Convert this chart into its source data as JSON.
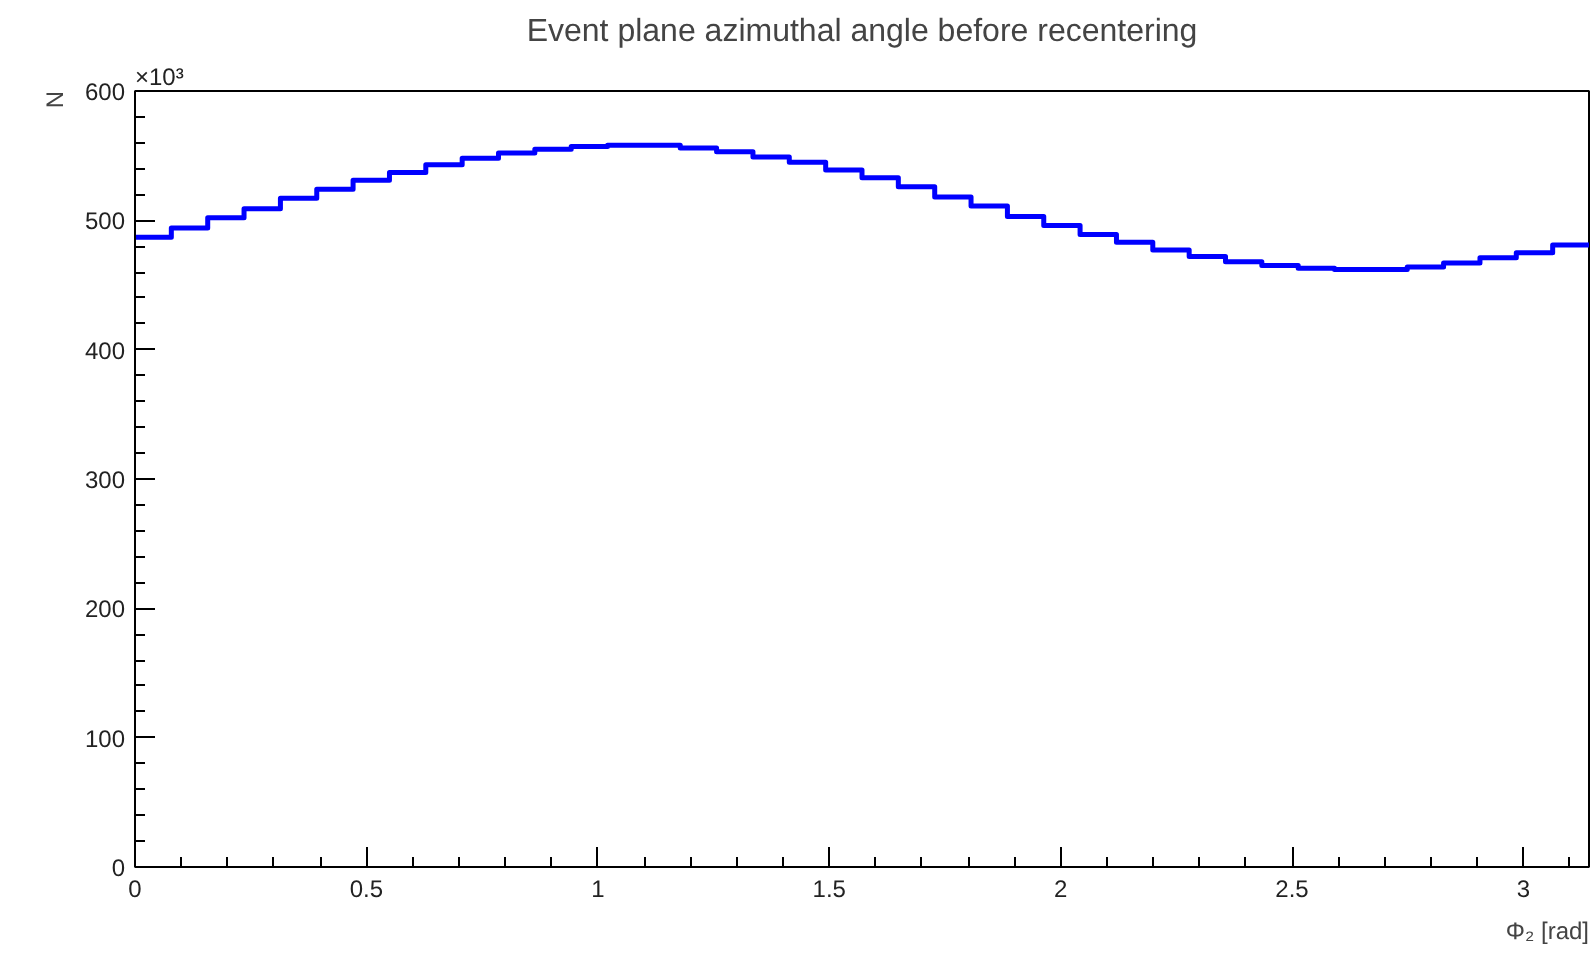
{
  "chart_data": {
    "type": "histogram",
    "title": "Event plane azimuthal angle before recentering",
    "xlabel": "Φ₂ [rad]",
    "ylabel": "N",
    "annotations": [
      "×10³"
    ],
    "color": "#0000ff",
    "bins": [
      0,
      0.0785,
      0.1571,
      0.2356,
      0.3142,
      0.3927,
      0.4712,
      0.5498,
      0.6283,
      0.7069,
      0.7854,
      0.8639,
      0.9425,
      1.021,
      1.0996,
      1.1781,
      1.2566,
      1.3352,
      1.4137,
      1.4923,
      1.5708,
      1.6493,
      1.7279,
      1.8064,
      1.885,
      1.9635,
      2.042,
      2.1206,
      2.1991,
      2.2777,
      2.3562,
      2.4347,
      2.5133,
      2.5918,
      2.6704,
      2.7489,
      2.8274,
      2.906,
      2.9845,
      3.0631,
      3.1416
    ],
    "values": [
      487,
      494,
      502,
      509,
      517,
      524,
      531,
      537,
      543,
      548,
      552,
      555,
      557,
      558,
      558,
      556,
      553,
      549,
      545,
      539,
      533,
      526,
      518,
      511,
      503,
      496,
      489,
      483,
      477,
      472,
      468,
      465,
      463,
      462,
      462,
      464,
      467,
      471,
      475,
      481
    ],
    "xlim": [
      0,
      3.1416
    ],
    "ylim": [
      0,
      600
    ],
    "xticks": [
      0,
      0.5,
      1,
      1.5,
      2,
      2.5,
      3,
      {
        "value": 0.1,
        "label": null
      },
      {
        "value": 0.2,
        "label": null
      },
      {
        "value": 0.3,
        "label": null
      },
      {
        "value": 0.4,
        "label": null
      },
      {
        "value": 0.6,
        "label": null
      },
      {
        "value": 0.7,
        "label": null
      },
      {
        "value": 0.8,
        "label": null
      },
      {
        "value": 0.9,
        "label": null
      },
      {
        "value": 1.1,
        "label": null
      },
      {
        "value": 1.2,
        "label": null
      },
      {
        "value": 1.3,
        "label": null
      },
      {
        "value": 1.4,
        "label": null
      },
      {
        "value": 1.6,
        "label": null
      },
      {
        "value": 1.7,
        "label": null
      },
      {
        "value": 1.8,
        "label": null
      },
      {
        "value": 1.9,
        "label": null
      },
      {
        "value": 2.1,
        "label": null
      },
      {
        "value": 2.2,
        "label": null
      },
      {
        "value": 2.3,
        "label": null
      },
      {
        "value": 2.4,
        "label": null
      },
      {
        "value": 2.6,
        "label": null
      },
      {
        "value": 2.7,
        "label": null
      },
      {
        "value": 2.8,
        "label": null
      },
      {
        "value": 2.9,
        "label": null
      },
      {
        "value": 3.1,
        "label": null
      }
    ],
    "yticks": [
      0,
      100,
      200,
      300,
      400,
      500,
      600,
      {
        "value": 20,
        "label": null
      },
      {
        "value": 40,
        "label": null
      },
      {
        "value": 60,
        "label": null
      },
      {
        "value": 80,
        "label": null
      },
      {
        "value": 120,
        "label": null
      },
      {
        "value": 140,
        "label": null
      },
      {
        "value": 160,
        "label": null
      },
      {
        "value": 180,
        "label": null
      },
      {
        "value": 220,
        "label": null
      },
      {
        "value": 240,
        "label": null
      },
      {
        "value": 260,
        "label": null
      },
      {
        "value": 280,
        "label": null
      },
      {
        "value": 320,
        "label": null
      },
      {
        "value": 340,
        "label": null
      },
      {
        "value": 360,
        "label": null
      },
      {
        "value": 380,
        "label": null
      },
      {
        "value": 420,
        "label": null
      },
      {
        "value": 440,
        "label": null
      },
      {
        "value": 460,
        "label": null
      },
      {
        "value": 480,
        "label": null
      },
      {
        "value": 520,
        "label": null
      },
      {
        "value": 540,
        "label": null
      },
      {
        "value": 560,
        "label": null
      },
      {
        "value": 580,
        "label": null
      }
    ],
    "grid": false
  }
}
